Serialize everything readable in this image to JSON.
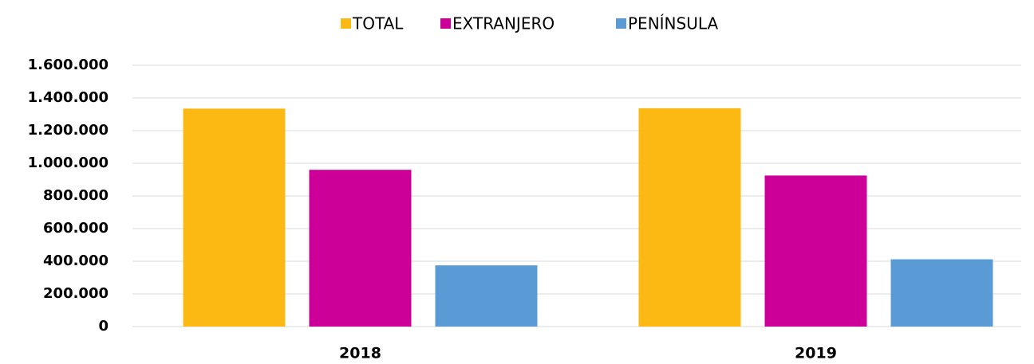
{
  "chart_data": {
    "type": "bar",
    "categories": [
      "2018",
      "2019"
    ],
    "series": [
      {
        "name": "TOTAL",
        "color": "#fdb913",
        "values": [
          1335000,
          1337000
        ]
      },
      {
        "name": "EXTRANJERO",
        "color": "#cc0099",
        "values": [
          960000,
          925000
        ]
      },
      {
        "name": "PENÍNSULA",
        "color": "#5b9bd5",
        "values": [
          375000,
          412000
        ]
      }
    ],
    "ylim": [
      0,
      1600000
    ],
    "yticks": [
      0,
      {
        "value": 200000,
        "label": "200.000"
      },
      {
        "value": 400000,
        "label": "400.000"
      },
      {
        "value": 600000,
        "label": "600.000"
      },
      {
        "value": 800000,
        "label": "800.000"
      },
      {
        "value": 1000000,
        "label": "1.000.000"
      },
      {
        "value": 1200000,
        "label": "1.200.000"
      },
      {
        "value": 1400000,
        "label": "1.400.000"
      },
      {
        "value": 1600000,
        "label": "1.600.000"
      }
    ],
    "grid": true,
    "legend": "top"
  }
}
